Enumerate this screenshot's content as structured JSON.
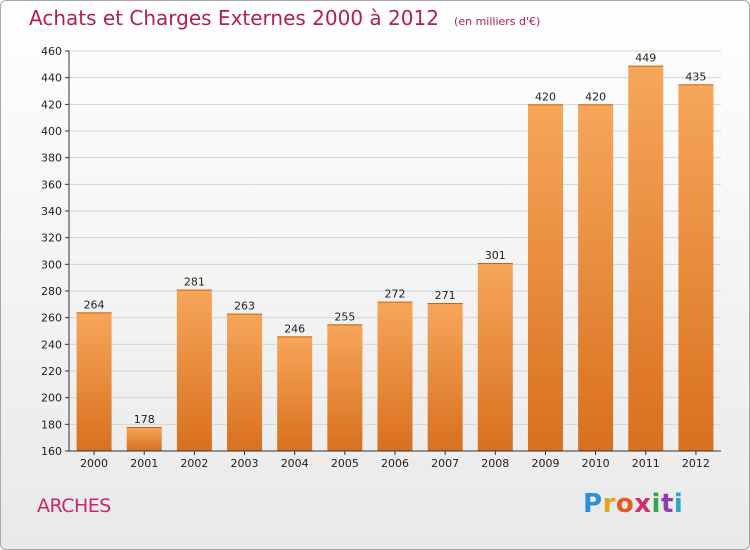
{
  "header": {
    "title": "Achats et Charges Externes 2000 à 2012",
    "unit": "(en milliers d'€)"
  },
  "footer": {
    "commune": "ARCHES",
    "logo_letters": [
      "P",
      "r",
      "o",
      "x",
      "i",
      "t",
      "i"
    ],
    "logo_colors": [
      "#2f8fd6",
      "#e8a020",
      "#e85a20",
      "#d22f6a",
      "#2fa84a",
      "#8a3fb0",
      "#29a6c8"
    ]
  },
  "colors": {
    "bar_top": "#f7a65a",
    "bar_bottom": "#d8701f",
    "grid": "#d4d4d4",
    "axis": "#333333"
  },
  "chart_data": {
    "type": "bar",
    "title": "Achats et Charges Externes 2000 à 2012",
    "categories": [
      "2000",
      "2001",
      "2002",
      "2003",
      "2004",
      "2005",
      "2006",
      "2007",
      "2008",
      "2009",
      "2010",
      "2011",
      "2012"
    ],
    "values": [
      264,
      178,
      281,
      263,
      246,
      255,
      272,
      271,
      301,
      420,
      420,
      449,
      435
    ],
    "ylim": [
      160,
      460
    ],
    "yticks": [
      160,
      180,
      200,
      220,
      240,
      260,
      280,
      300,
      320,
      340,
      360,
      380,
      400,
      420,
      440,
      460
    ],
    "grid": true,
    "legend": "none"
  }
}
